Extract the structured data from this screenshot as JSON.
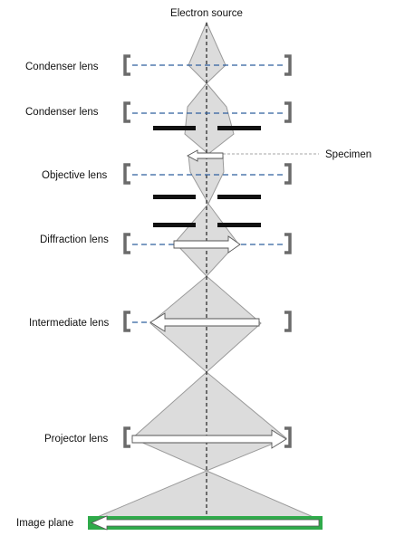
{
  "labels": {
    "source": "Electron source",
    "condenser1": "Condenser lens",
    "condenser2": "Condenser lens",
    "specimen": "Specimen",
    "objective": "Objective lens",
    "diffraction": "Diffraction lens",
    "intermediate": "Intermediate lens",
    "projector": "Projector lens",
    "image_plane": "Image plane"
  },
  "colors": {
    "beam_fill": "#dcdcdc",
    "beam_stroke": "#9a9a9a",
    "lens_line": "#2f5f9e",
    "bracket": "#6b6b6b",
    "aperture": "#111111",
    "image_plane": "#2faa4a",
    "arrow_fill": "#ffffff",
    "axis": "#222222"
  }
}
